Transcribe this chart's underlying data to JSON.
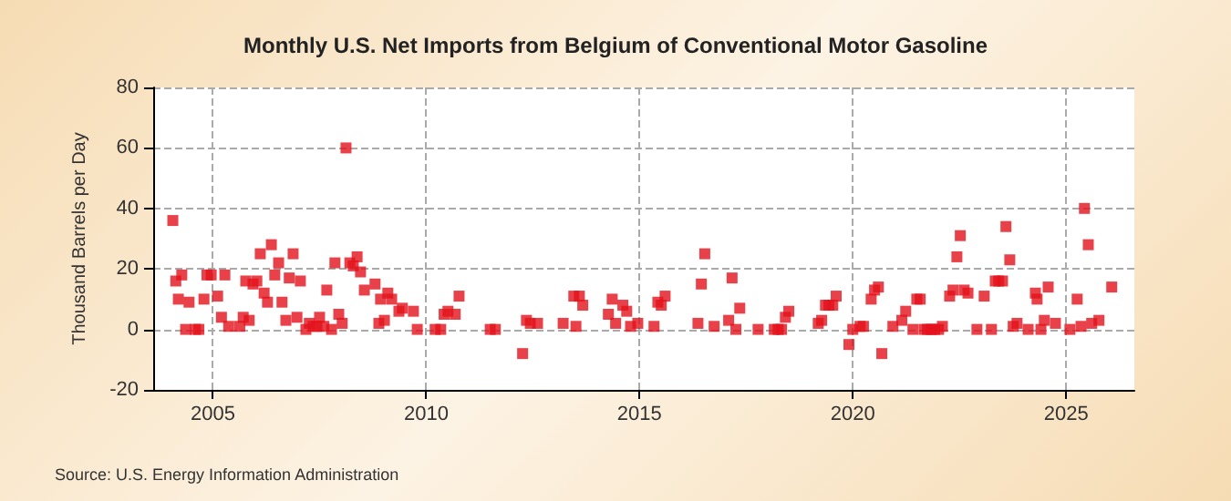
{
  "chart_data": {
    "type": "scatter",
    "title": "Monthly U.S. Net Imports from Belgium of Conventional Motor Gasoline",
    "ylabel": "Thousand Barrels per Day",
    "annotations": [
      "Source: U.S. Energy Information Administration"
    ],
    "x": [
      2004.06,
      2004.13,
      2004.19,
      2004.27,
      2004.36,
      2004.44,
      2004.59,
      2004.67,
      2004.79,
      2004.86,
      2004.96,
      2005.11,
      2005.2,
      2005.28,
      2005.37,
      2005.63,
      2005.71,
      2005.77,
      2005.85,
      2005.94,
      2006.03,
      2006.11,
      2006.2,
      2006.28,
      2006.37,
      2006.45,
      2006.54,
      2006.62,
      2006.71,
      2006.79,
      2006.88,
      2006.97,
      2007.05,
      2007.18,
      2007.26,
      2007.35,
      2007.44,
      2007.5,
      2007.6,
      2007.67,
      2007.78,
      2007.86,
      2007.95,
      2008.03,
      2008.12,
      2008.21,
      2008.29,
      2008.38,
      2008.46,
      2008.55,
      2008.8,
      2008.89,
      2008.93,
      2009.02,
      2009.1,
      2009.19,
      2009.36,
      2009.44,
      2009.7,
      2009.79,
      2010.21,
      2010.34,
      2010.42,
      2010.51,
      2010.68,
      2010.77,
      2011.5,
      2011.62,
      2012.26,
      2012.35,
      2012.44,
      2012.61,
      2013.21,
      2013.46,
      2013.51,
      2013.59,
      2013.67,
      2014.27,
      2014.36,
      2014.44,
      2014.61,
      2014.7,
      2014.79,
      2014.96,
      2015.34,
      2015.43,
      2015.51,
      2015.6,
      2016.37,
      2016.45,
      2016.53,
      2016.75,
      2017.09,
      2017.17,
      2017.26,
      2017.35,
      2017.78,
      2018.16,
      2018.25,
      2018.33,
      2018.42,
      2018.5,
      2019.19,
      2019.27,
      2019.36,
      2019.44,
      2019.53,
      2019.61,
      2019.91,
      2020.0,
      2020.17,
      2020.25,
      2020.43,
      2020.51,
      2020.6,
      2020.68,
      2020.94,
      2021.15,
      2021.24,
      2021.41,
      2021.5,
      2021.58,
      2021.67,
      2021.75,
      2021.84,
      2021.92,
      2022.01,
      2022.1,
      2022.27,
      2022.35,
      2022.44,
      2022.52,
      2022.61,
      2022.7,
      2022.91,
      2023.08,
      2023.25,
      2023.34,
      2023.42,
      2023.51,
      2023.59,
      2023.68,
      2023.76,
      2023.85,
      2024.11,
      2024.28,
      2024.32,
      2024.41,
      2024.49,
      2024.58,
      2024.75,
      2025.09,
      2025.26,
      2025.35,
      2025.43,
      2025.52,
      2025.6,
      2025.77,
      2026.07
    ],
    "series": [
      {
        "color": "#e3121b",
        "values": [
          36,
          16,
          10,
          18,
          0,
          9,
          0,
          0,
          10,
          18,
          18,
          11,
          4,
          18,
          1,
          1,
          4,
          16,
          3,
          15,
          16,
          25,
          12,
          9,
          28,
          18,
          22,
          9,
          3,
          17,
          25,
          4,
          16,
          0,
          2,
          1,
          1,
          4,
          1,
          13,
          0,
          22,
          5,
          2,
          60,
          22,
          21,
          24,
          19,
          13,
          15,
          2,
          10,
          3,
          12,
          10,
          6,
          7,
          6,
          0,
          0,
          0,
          5,
          6,
          5,
          11,
          0,
          0,
          -8,
          3,
          2,
          2,
          2,
          11,
          1,
          11,
          8,
          5,
          10,
          2,
          8,
          6,
          1,
          2,
          1,
          9,
          8,
          11,
          2,
          15,
          25,
          1,
          3,
          17,
          0,
          7,
          0,
          0,
          0,
          0,
          4,
          6,
          2,
          3,
          8,
          8,
          8,
          11,
          -5,
          0,
          1,
          1,
          10,
          13,
          14,
          -8,
          1,
          3,
          6,
          0,
          10,
          10,
          0,
          0,
          0,
          0,
          0,
          1,
          11,
          13,
          24,
          31,
          13,
          12,
          0,
          11,
          0,
          16,
          16,
          16,
          34,
          23,
          1,
          2,
          0,
          12,
          10,
          0,
          3,
          14,
          2,
          0,
          10,
          1,
          40,
          28,
          2,
          3,
          14
        ]
      }
    ],
    "xlim": [
      2003.6,
      2026.6
    ],
    "xticks": [
      2005,
      2010,
      2015,
      2020,
      2025
    ],
    "ylim": [
      -20,
      80
    ],
    "yticks": [
      -20,
      0,
      20,
      40,
      60,
      80
    ],
    "grid": true,
    "marker": "square"
  }
}
